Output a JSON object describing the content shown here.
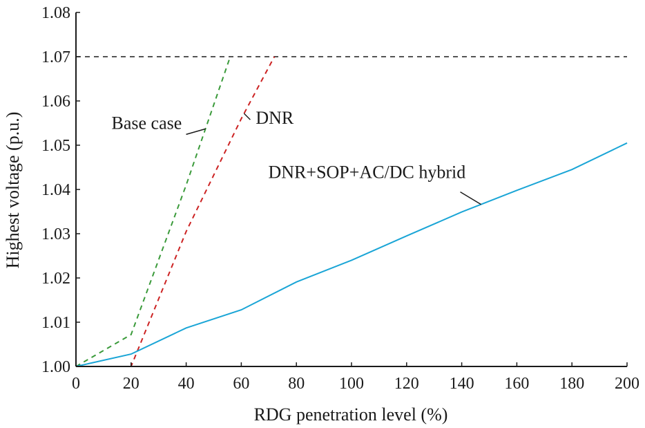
{
  "chart_data": {
    "type": "line",
    "xlabel": "RDG penetration level (%)",
    "ylabel": "Highest voltage (p.u.)",
    "xlim": [
      0,
      200
    ],
    "ylim": [
      1.0,
      1.08
    ],
    "xticks": [
      0,
      20,
      40,
      60,
      80,
      100,
      120,
      140,
      160,
      180,
      200
    ],
    "yticks": [
      1.0,
      1.01,
      1.02,
      1.03,
      1.04,
      1.05,
      1.06,
      1.07,
      1.08
    ],
    "xtick_labels": [
      "0",
      "20",
      "40",
      "60",
      "80",
      "100",
      "120",
      "140",
      "160",
      "180",
      "200"
    ],
    "ytick_labels": [
      "1.00",
      "1.01",
      "1.02",
      "1.03",
      "1.04",
      "1.05",
      "1.06",
      "1.07",
      "1.08"
    ],
    "grid": false,
    "reference_line": {
      "y": 1.07,
      "color": "#1a1a1a",
      "style": "dashed"
    },
    "series": [
      {
        "name": "Base case",
        "color": "#3a9a3a",
        "style": "dashed",
        "x": [
          0,
          20,
          40,
          56
        ],
        "y": [
          1.0,
          1.0072,
          1.041,
          1.07
        ]
      },
      {
        "name": "DNR",
        "color": "#cc2222",
        "style": "dashed",
        "x": [
          0,
          20,
          40,
          60,
          72
        ],
        "y": [
          1.0,
          1.0,
          1.0305,
          1.056,
          1.07
        ]
      },
      {
        "name": "DNR+SOP+AC/DC hybrid",
        "color": "#1aa5d6",
        "style": "solid",
        "x": [
          0,
          20,
          40,
          60,
          80,
          100,
          120,
          140,
          160,
          180,
          200
        ],
        "y": [
          1.0,
          1.0028,
          1.0087,
          1.0128,
          1.0191,
          1.024,
          1.0295,
          1.0349,
          1.0398,
          1.0445,
          1.0505
        ]
      }
    ],
    "annotations": [
      {
        "text": "Base case",
        "series": 0,
        "at_x": 47
      },
      {
        "text": "DNR",
        "series": 1,
        "at_x": 61
      },
      {
        "text": "DNR+SOP+AC/DC hybrid",
        "series": 2,
        "at_x": 147
      }
    ]
  }
}
